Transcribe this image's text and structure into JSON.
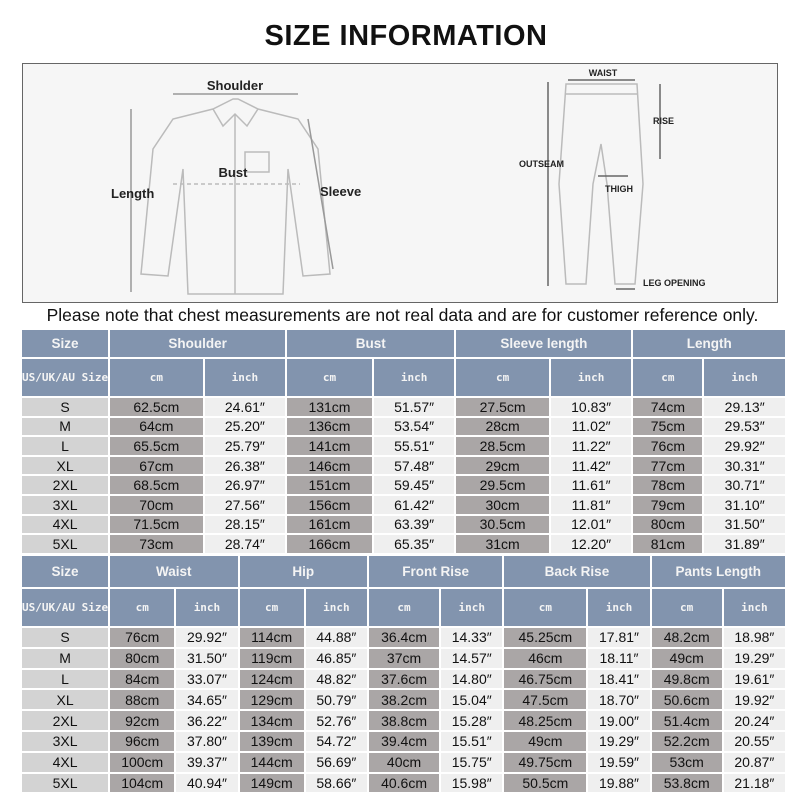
{
  "title": "SIZE INFORMATION",
  "figure": {
    "shirt_labels": {
      "shoulder": "Shoulder",
      "bust": "Bust",
      "length": "Length",
      "sleeve": "Sleeve"
    },
    "pants_labels": {
      "waist": "WAIST",
      "rise": "RISE",
      "outseam": "OUTSEAM",
      "thigh": "THIGH",
      "leg_opening": "LEG OPENING"
    }
  },
  "note": "Please note that chest measurements are not real data and are for customer reference only.",
  "top_table": {
    "size_header": "Size",
    "size_subheader": "US/UK/AU Size",
    "cm": "cm",
    "inch": "inch",
    "groups": [
      "Shoulder",
      "Bust",
      "Sleeve length",
      "Length"
    ],
    "rows": [
      [
        "S",
        "62.5cm",
        "24.61″",
        "131cm",
        "51.57″",
        "27.5cm",
        "10.83″",
        "74cm",
        "29.13″"
      ],
      [
        "M",
        "64cm",
        "25.20″",
        "136cm",
        "53.54″",
        "28cm",
        "11.02″",
        "75cm",
        "29.53″"
      ],
      [
        "L",
        "65.5cm",
        "25.79″",
        "141cm",
        "55.51″",
        "28.5cm",
        "11.22″",
        "76cm",
        "29.92″"
      ],
      [
        "XL",
        "67cm",
        "26.38″",
        "146cm",
        "57.48″",
        "29cm",
        "11.42″",
        "77cm",
        "30.31″"
      ],
      [
        "2XL",
        "68.5cm",
        "26.97″",
        "151cm",
        "59.45″",
        "29.5cm",
        "11.61″",
        "78cm",
        "30.71″"
      ],
      [
        "3XL",
        "70cm",
        "27.56″",
        "156cm",
        "61.42″",
        "30cm",
        "11.81″",
        "79cm",
        "31.10″"
      ],
      [
        "4XL",
        "71.5cm",
        "28.15″",
        "161cm",
        "63.39″",
        "30.5cm",
        "12.01″",
        "80cm",
        "31.50″"
      ],
      [
        "5XL",
        "73cm",
        "28.74″",
        "166cm",
        "65.35″",
        "31cm",
        "12.20″",
        "81cm",
        "31.89″"
      ]
    ]
  },
  "bottom_table": {
    "size_header": "Size",
    "size_subheader": "US/UK/AU Size",
    "cm": "cm",
    "inch": "inch",
    "groups": [
      "Waist",
      "Hip",
      "Front Rise",
      "Back Rise",
      "Pants Length"
    ],
    "rows": [
      [
        "S",
        "76cm",
        "29.92″",
        "114cm",
        "44.88″",
        "36.4cm",
        "14.33″",
        "45.25cm",
        "17.81″",
        "48.2cm",
        "18.98″"
      ],
      [
        "M",
        "80cm",
        "31.50″",
        "119cm",
        "46.85″",
        "37cm",
        "14.57″",
        "46cm",
        "18.11″",
        "49cm",
        "19.29″"
      ],
      [
        "L",
        "84cm",
        "33.07″",
        "124cm",
        "48.82″",
        "37.6cm",
        "14.80″",
        "46.75cm",
        "18.41″",
        "49.8cm",
        "19.61″"
      ],
      [
        "XL",
        "88cm",
        "34.65″",
        "129cm",
        "50.79″",
        "38.2cm",
        "15.04″",
        "47.5cm",
        "18.70″",
        "50.6cm",
        "19.92″"
      ],
      [
        "2XL",
        "92cm",
        "36.22″",
        "134cm",
        "52.76″",
        "38.8cm",
        "15.28″",
        "48.25cm",
        "19.00″",
        "51.4cm",
        "20.24″"
      ],
      [
        "3XL",
        "96cm",
        "37.80″",
        "139cm",
        "54.72″",
        "39.4cm",
        "15.51″",
        "49cm",
        "19.29″",
        "52.2cm",
        "20.55″"
      ],
      [
        "4XL",
        "100cm",
        "39.37″",
        "144cm",
        "56.69″",
        "40cm",
        "15.75″",
        "49.75cm",
        "19.59″",
        "53cm",
        "20.87″"
      ],
      [
        "5XL",
        "104cm",
        "40.94″",
        "149cm",
        "58.66″",
        "40.6cm",
        "15.98″",
        "50.5cm",
        "19.88″",
        "53.8cm",
        "21.18″"
      ]
    ]
  }
}
